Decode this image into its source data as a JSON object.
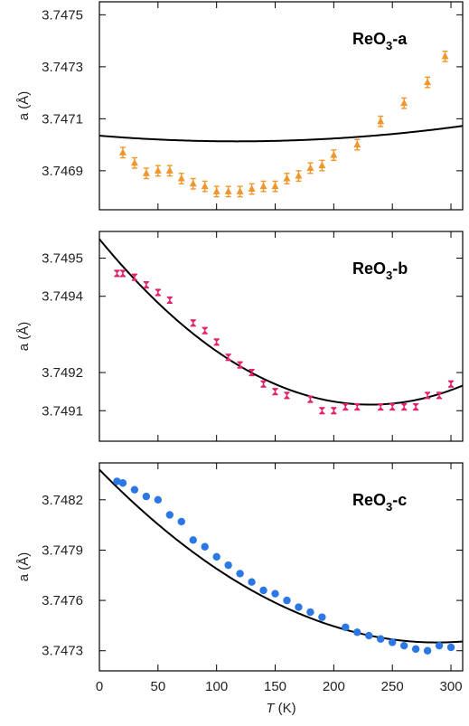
{
  "chart_data": [
    {
      "type": "scatter",
      "panel_label": "ReO",
      "panel_label_sub": "3",
      "panel_label_suffix": "-a",
      "ylabel": "a (Å)",
      "xlim": [
        0,
        310
      ],
      "ylim": [
        3.74675,
        3.74755
      ],
      "yticks": [
        {
          "value": 3.7469,
          "label": "3.7469"
        },
        {
          "value": 3.7471,
          "label": "3.7471"
        },
        {
          "value": 3.7473,
          "label": "3.7473"
        },
        {
          "value": 3.7475,
          "label": "3.7475"
        }
      ],
      "marker": "triangle",
      "color": "#f0962c",
      "points": [
        {
          "x": 20,
          "y": 3.74697,
          "err": 2e-05
        },
        {
          "x": 30,
          "y": 3.74693,
          "err": 2e-05
        },
        {
          "x": 40,
          "y": 3.74689,
          "err": 2e-05
        },
        {
          "x": 50,
          "y": 3.7469,
          "err": 2e-05
        },
        {
          "x": 60,
          "y": 3.7469,
          "err": 2e-05
        },
        {
          "x": 70,
          "y": 3.74687,
          "err": 2e-05
        },
        {
          "x": 80,
          "y": 3.74685,
          "err": 2e-05
        },
        {
          "x": 90,
          "y": 3.74684,
          "err": 2e-05
        },
        {
          "x": 100,
          "y": 3.74682,
          "err": 2e-05
        },
        {
          "x": 110,
          "y": 3.74682,
          "err": 2e-05
        },
        {
          "x": 120,
          "y": 3.74682,
          "err": 2e-05
        },
        {
          "x": 130,
          "y": 3.74683,
          "err": 2e-05
        },
        {
          "x": 140,
          "y": 3.74684,
          "err": 2e-05
        },
        {
          "x": 150,
          "y": 3.74684,
          "err": 2e-05
        },
        {
          "x": 160,
          "y": 3.74687,
          "err": 2e-05
        },
        {
          "x": 170,
          "y": 3.74688,
          "err": 2e-05
        },
        {
          "x": 180,
          "y": 3.74691,
          "err": 2e-05
        },
        {
          "x": 190,
          "y": 3.74692,
          "err": 2e-05
        },
        {
          "x": 200,
          "y": 3.74696,
          "err": 2e-05
        },
        {
          "x": 220,
          "y": 3.747,
          "err": 2e-05
        },
        {
          "x": 240,
          "y": 3.74709,
          "err": 2e-05
        },
        {
          "x": 260,
          "y": 3.74716,
          "err": 2e-05
        },
        {
          "x": 280,
          "y": 3.74724,
          "err": 2e-05
        },
        {
          "x": 295,
          "y": 3.74734,
          "err": 2e-05
        }
      ],
      "fit": {
        "c0": 3.747035,
        "c1": -3.72e-07,
        "c2": 1.59e-09
      }
    },
    {
      "type": "scatter",
      "panel_label": "ReO",
      "panel_label_sub": "3",
      "panel_label_suffix": "-b",
      "ylabel": "a (Å)",
      "xlim": [
        0,
        310
      ],
      "ylim": [
        3.74902,
        3.74957
      ],
      "yticks": [
        {
          "value": 3.7491,
          "label": "3.7491"
        },
        {
          "value": 3.7492,
          "label": "3.7492"
        },
        {
          "value": 3.7494,
          "label": "3.7494"
        },
        {
          "value": 3.7495,
          "label": "3.7495"
        }
      ],
      "marker": "hourglass",
      "color": "#e3246d",
      "points": [
        {
          "x": 15,
          "y": 3.74946,
          "err": 8e-06
        },
        {
          "x": 20,
          "y": 3.74946,
          "err": 8e-06
        },
        {
          "x": 30,
          "y": 3.74945,
          "err": 8e-06
        },
        {
          "x": 40,
          "y": 3.74943,
          "err": 8e-06
        },
        {
          "x": 50,
          "y": 3.74941,
          "err": 8e-06
        },
        {
          "x": 60,
          "y": 3.74939,
          "err": 8e-06
        },
        {
          "x": 80,
          "y": 3.74933,
          "err": 8e-06
        },
        {
          "x": 90,
          "y": 3.74931,
          "err": 8e-06
        },
        {
          "x": 100,
          "y": 3.74928,
          "err": 8e-06
        },
        {
          "x": 110,
          "y": 3.74924,
          "err": 8e-06
        },
        {
          "x": 120,
          "y": 3.74922,
          "err": 8e-06
        },
        {
          "x": 130,
          "y": 3.7492,
          "err": 8e-06
        },
        {
          "x": 140,
          "y": 3.74917,
          "err": 8e-06
        },
        {
          "x": 150,
          "y": 3.74915,
          "err": 8e-06
        },
        {
          "x": 160,
          "y": 3.74914,
          "err": 8e-06
        },
        {
          "x": 180,
          "y": 3.74913,
          "err": 8e-06
        },
        {
          "x": 190,
          "y": 3.7491,
          "err": 8e-06
        },
        {
          "x": 200,
          "y": 3.7491,
          "err": 8e-06
        },
        {
          "x": 210,
          "y": 3.74911,
          "err": 8e-06
        },
        {
          "x": 220,
          "y": 3.74911,
          "err": 8e-06
        },
        {
          "x": 240,
          "y": 3.74911,
          "err": 8e-06
        },
        {
          "x": 250,
          "y": 3.74911,
          "err": 8e-06
        },
        {
          "x": 260,
          "y": 3.74911,
          "err": 8e-06
        },
        {
          "x": 270,
          "y": 3.74911,
          "err": 8e-06
        },
        {
          "x": 280,
          "y": 3.74914,
          "err": 8e-06
        },
        {
          "x": 290,
          "y": 3.74914,
          "err": 8e-06
        },
        {
          "x": 300,
          "y": 3.74917,
          "err": 8e-06
        }
      ],
      "fit": {
        "c0": 3.74955,
        "c1": -3.75e-06,
        "c2": 8.1e-09
      }
    },
    {
      "type": "scatter",
      "panel_label": "ReO",
      "panel_label_sub": "3",
      "panel_label_suffix": "-c",
      "ylabel": "a (Å)",
      "xlabel_italic": "T",
      "xlabel_rest": " (K)",
      "xlim": [
        0,
        310
      ],
      "ylim": [
        3.74718,
        3.74842
      ],
      "yticks": [
        {
          "value": 3.7473,
          "label": "3.7473"
        },
        {
          "value": 3.7476,
          "label": "3.7476"
        },
        {
          "value": 3.7479,
          "label": "3.7479"
        },
        {
          "value": 3.7482,
          "label": "3.7482"
        }
      ],
      "xticks": [
        {
          "value": 0,
          "label": "0"
        },
        {
          "value": 50,
          "label": "50"
        },
        {
          "value": 100,
          "label": "100"
        },
        {
          "value": 150,
          "label": "150"
        },
        {
          "value": 200,
          "label": "200"
        },
        {
          "value": 250,
          "label": "250"
        },
        {
          "value": 300,
          "label": "300"
        }
      ],
      "marker": "circle",
      "color": "#2b78e4",
      "points": [
        {
          "x": 15,
          "y": 3.74831
        },
        {
          "x": 20,
          "y": 3.7483
        },
        {
          "x": 30,
          "y": 3.74826
        },
        {
          "x": 40,
          "y": 3.74822
        },
        {
          "x": 50,
          "y": 3.7482
        },
        {
          "x": 60,
          "y": 3.74811
        },
        {
          "x": 70,
          "y": 3.74807
        },
        {
          "x": 80,
          "y": 3.74796
        },
        {
          "x": 90,
          "y": 3.74792
        },
        {
          "x": 100,
          "y": 3.74786
        },
        {
          "x": 110,
          "y": 3.74781
        },
        {
          "x": 120,
          "y": 3.74776
        },
        {
          "x": 130,
          "y": 3.74771
        },
        {
          "x": 140,
          "y": 3.74766
        },
        {
          "x": 150,
          "y": 3.74764
        },
        {
          "x": 160,
          "y": 3.7476
        },
        {
          "x": 170,
          "y": 3.74756
        },
        {
          "x": 180,
          "y": 3.74753
        },
        {
          "x": 190,
          "y": 3.7475
        },
        {
          "x": 210,
          "y": 3.74744
        },
        {
          "x": 220,
          "y": 3.74741
        },
        {
          "x": 230,
          "y": 3.74739
        },
        {
          "x": 240,
          "y": 3.74737
        },
        {
          "x": 250,
          "y": 3.74735
        },
        {
          "x": 260,
          "y": 3.74733
        },
        {
          "x": 270,
          "y": 3.74731
        },
        {
          "x": 280,
          "y": 3.7473
        },
        {
          "x": 290,
          "y": 3.74733
        },
        {
          "x": 300,
          "y": 3.74732
        }
      ],
      "fit": {
        "c0": 3.74838,
        "c1": -7.15e-06,
        "c2": 1.24e-08
      }
    }
  ]
}
